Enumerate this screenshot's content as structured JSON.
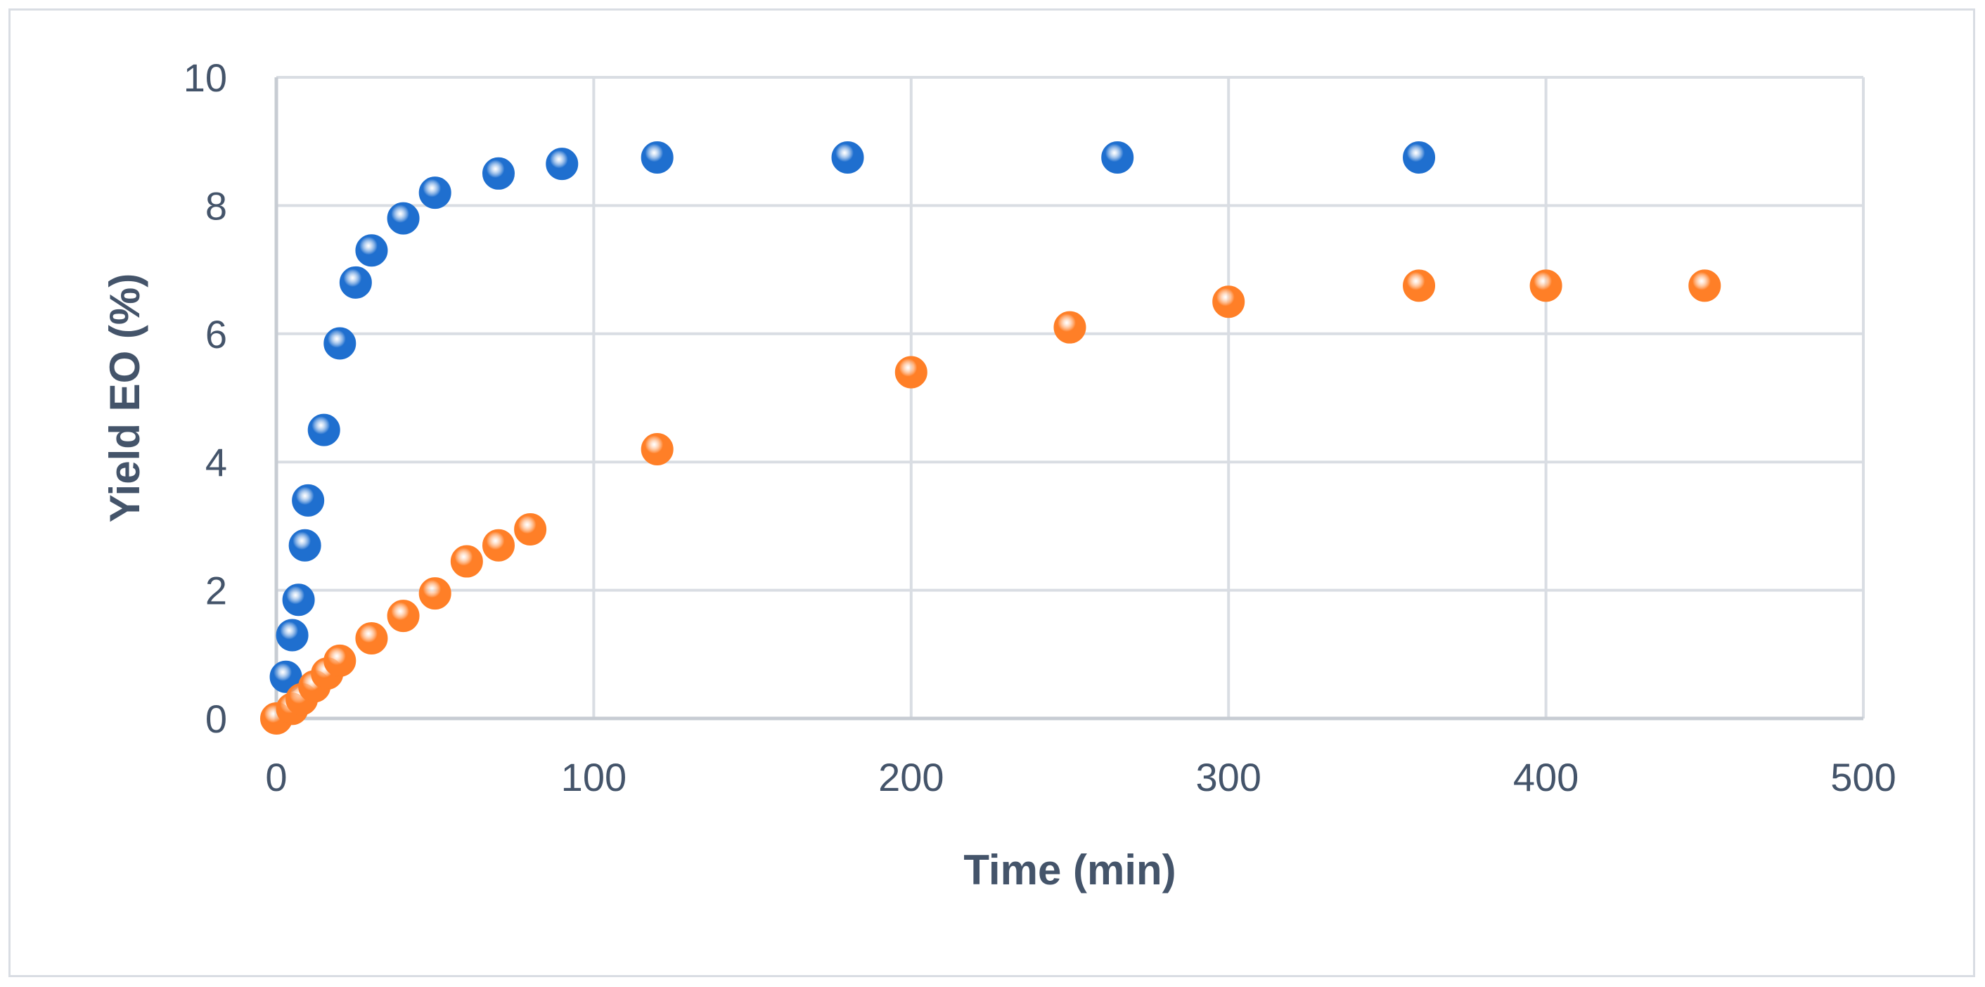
{
  "chart_data": {
    "type": "scatter",
    "title": "",
    "xlabel": "Time (min)",
    "ylabel": "Yield EO (%)",
    "xlim": [
      0,
      500
    ],
    "ylim": [
      0,
      10
    ],
    "x_ticks": [
      0,
      100,
      200,
      300,
      400,
      500
    ],
    "y_ticks": [
      0,
      2,
      4,
      6,
      8,
      10
    ],
    "grid": true,
    "legend": "none",
    "series": [
      {
        "color": "#1f6fcf",
        "points": [
          {
            "x": 3,
            "y": 0.65
          },
          {
            "x": 5,
            "y": 1.3
          },
          {
            "x": 7,
            "y": 1.85
          },
          {
            "x": 9,
            "y": 2.7
          },
          {
            "x": 10,
            "y": 3.4
          },
          {
            "x": 15,
            "y": 4.5
          },
          {
            "x": 20,
            "y": 5.85
          },
          {
            "x": 25,
            "y": 6.8
          },
          {
            "x": 30,
            "y": 7.3
          },
          {
            "x": 40,
            "y": 7.8
          },
          {
            "x": 50,
            "y": 8.2
          },
          {
            "x": 70,
            "y": 8.5
          },
          {
            "x": 90,
            "y": 8.65
          },
          {
            "x": 120,
            "y": 8.75
          },
          {
            "x": 180,
            "y": 8.75
          },
          {
            "x": 265,
            "y": 8.75
          },
          {
            "x": 360,
            "y": 8.75
          }
        ]
      },
      {
        "color": "#ff7f27",
        "points": [
          {
            "x": 0,
            "y": 0.0
          },
          {
            "x": 5,
            "y": 0.15
          },
          {
            "x": 8,
            "y": 0.3
          },
          {
            "x": 12,
            "y": 0.5
          },
          {
            "x": 16,
            "y": 0.7
          },
          {
            "x": 20,
            "y": 0.9
          },
          {
            "x": 30,
            "y": 1.25
          },
          {
            "x": 40,
            "y": 1.6
          },
          {
            "x": 50,
            "y": 1.95
          },
          {
            "x": 60,
            "y": 2.45
          },
          {
            "x": 70,
            "y": 2.7
          },
          {
            "x": 80,
            "y": 2.95
          },
          {
            "x": 120,
            "y": 4.2
          },
          {
            "x": 200,
            "y": 5.4
          },
          {
            "x": 250,
            "y": 6.1
          },
          {
            "x": 300,
            "y": 6.5
          },
          {
            "x": 360,
            "y": 6.75
          },
          {
            "x": 400,
            "y": 6.75
          },
          {
            "x": 450,
            "y": 6.75
          }
        ]
      }
    ]
  }
}
